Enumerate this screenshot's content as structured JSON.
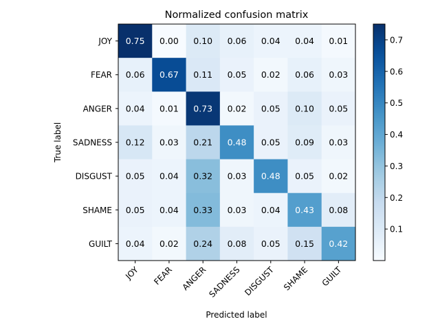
{
  "chart_data": {
    "type": "heatmap",
    "title": "Normalized confusion matrix",
    "xlabel": "Predicted label",
    "ylabel": "True label",
    "x_categories": [
      "JOY",
      "FEAR",
      "ANGER",
      "SADNESS",
      "DISGUST",
      "SHAME",
      "GUILT"
    ],
    "y_categories": [
      "JOY",
      "FEAR",
      "ANGER",
      "SADNESS",
      "DISGUST",
      "SHAME",
      "GUILT"
    ],
    "values": [
      [
        0.75,
        0.0,
        0.1,
        0.06,
        0.04,
        0.04,
        0.01
      ],
      [
        0.06,
        0.67,
        0.11,
        0.05,
        0.02,
        0.06,
        0.03
      ],
      [
        0.04,
        0.01,
        0.73,
        0.02,
        0.05,
        0.1,
        0.05
      ],
      [
        0.12,
        0.03,
        0.21,
        0.48,
        0.05,
        0.09,
        0.03
      ],
      [
        0.05,
        0.04,
        0.32,
        0.03,
        0.48,
        0.05,
        0.02
      ],
      [
        0.05,
        0.04,
        0.33,
        0.03,
        0.04,
        0.43,
        0.08
      ],
      [
        0.04,
        0.02,
        0.24,
        0.08,
        0.05,
        0.15,
        0.42
      ]
    ],
    "colormap": "Blues",
    "vmin": 0.0,
    "vmax": 0.75,
    "colorbar_ticks": [
      0.1,
      0.2,
      0.3,
      0.4,
      0.5,
      0.6,
      0.7
    ],
    "colorbar_tick_labels": [
      "0.1",
      "0.2",
      "0.3",
      "0.4",
      "0.5",
      "0.6",
      "0.7"
    ],
    "text_threshold": 0.375,
    "grid": false
  }
}
